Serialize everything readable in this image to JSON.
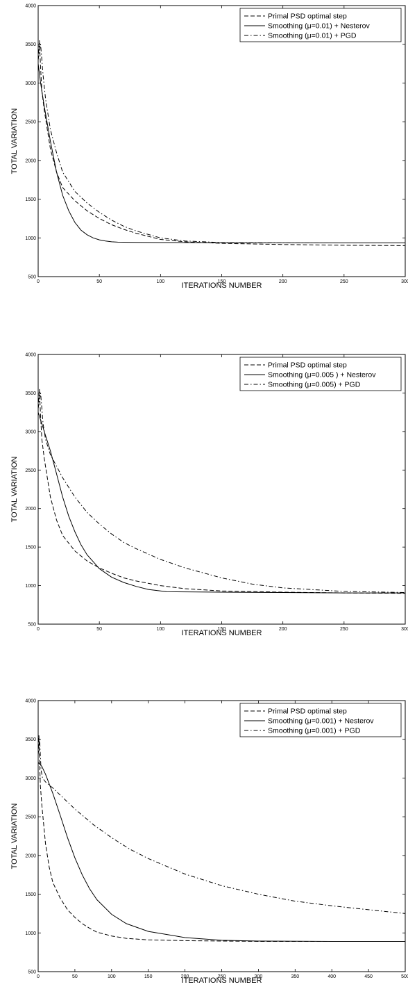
{
  "chart_data": [
    {
      "type": "line",
      "xlabel": "ITERATIONS NUMBER",
      "ylabel": "TOTAL VARIATION",
      "xlim": [
        0,
        300
      ],
      "ylim": [
        500,
        4000
      ],
      "xticks": [
        "0",
        "50",
        "100",
        "150",
        "200",
        "250",
        "300"
      ],
      "yticks": [
        "500",
        "1000",
        "1500",
        "2000",
        "2500",
        "3000",
        "3500",
        "4000"
      ],
      "legend_position": "top-right",
      "grid": false,
      "series": [
        {
          "name": "Primal PSD optimal step",
          "style": "dashed",
          "x": [
            0,
            1,
            2,
            3,
            5,
            10,
            15,
            20,
            30,
            40,
            50,
            60,
            70,
            80,
            100,
            120,
            150,
            200,
            250,
            300
          ],
          "y": [
            3300,
            3550,
            3200,
            2900,
            2650,
            2150,
            1850,
            1650,
            1480,
            1350,
            1250,
            1170,
            1110,
            1060,
            980,
            950,
            930,
            915,
            905,
            900
          ]
        },
        {
          "name": "Smoothing (μ=0.01) + Nesterov",
          "style": "solid",
          "x": [
            0,
            2,
            5,
            10,
            15,
            20,
            25,
            30,
            35,
            40,
            45,
            50,
            55,
            60,
            65,
            80,
            100,
            150,
            200,
            250,
            300
          ],
          "y": [
            3250,
            3000,
            2700,
            2250,
            1850,
            1550,
            1350,
            1200,
            1100,
            1040,
            1000,
            975,
            960,
            950,
            945,
            942,
            940,
            938,
            936,
            935,
            935
          ]
        },
        {
          "name": "Smoothing (μ=0.01) + PGD",
          "style": "dashdot",
          "x": [
            0,
            2,
            4,
            6,
            10,
            15,
            20,
            30,
            40,
            50,
            60,
            70,
            80,
            100,
            120,
            150,
            200,
            250,
            300
          ],
          "y": [
            3300,
            3500,
            3100,
            2800,
            2400,
            2100,
            1850,
            1600,
            1450,
            1330,
            1230,
            1150,
            1090,
            1000,
            960,
            940,
            935,
            935,
            935
          ]
        }
      ]
    },
    {
      "type": "line",
      "xlabel": "ITERATIONS NUMBER",
      "ylabel": "TOTAL VARIATION",
      "xlim": [
        0,
        300
      ],
      "ylim": [
        500,
        4000
      ],
      "xticks": [
        "0",
        "50",
        "100",
        "150",
        "200",
        "250",
        "300"
      ],
      "yticks": [
        "500",
        "1000",
        "1500",
        "2000",
        "2500",
        "3000",
        "3500",
        "4000"
      ],
      "legend_position": "top-right",
      "grid": false,
      "series": [
        {
          "name": "Primal PSD optimal step",
          "style": "dashed",
          "x": [
            0,
            1,
            2,
            3,
            5,
            10,
            15,
            20,
            30,
            40,
            50,
            60,
            70,
            80,
            100,
            120,
            150,
            200,
            250,
            300
          ],
          "y": [
            3300,
            3550,
            3200,
            2900,
            2650,
            2150,
            1850,
            1650,
            1450,
            1320,
            1230,
            1160,
            1100,
            1060,
            1000,
            960,
            930,
            915,
            905,
            900
          ]
        },
        {
          "name": "Smoothing (μ=0.005 ) + Nesterov",
          "style": "solid",
          "x": [
            0,
            2,
            5,
            10,
            15,
            20,
            25,
            30,
            35,
            40,
            50,
            60,
            70,
            80,
            90,
            100,
            105,
            150,
            200,
            250,
            300
          ],
          "y": [
            3250,
            3150,
            3000,
            2750,
            2450,
            2150,
            1900,
            1700,
            1530,
            1400,
            1220,
            1110,
            1040,
            990,
            950,
            930,
            920,
            915,
            910,
            905,
            905
          ]
        },
        {
          "name": "Smoothing (μ=0.005) + PGD",
          "style": "dashdot",
          "x": [
            0,
            2,
            4,
            6,
            10,
            20,
            30,
            40,
            50,
            60,
            70,
            80,
            100,
            120,
            150,
            175,
            200,
            250,
            300
          ],
          "y": [
            3300,
            3500,
            3100,
            2900,
            2700,
            2400,
            2150,
            1950,
            1800,
            1670,
            1560,
            1480,
            1340,
            1230,
            1100,
            1020,
            970,
            925,
            910
          ]
        }
      ]
    },
    {
      "type": "line",
      "xlabel": "ITERATIONS NUMBER",
      "ylabel": "TOTAL VARIATION",
      "xlim": [
        0,
        500
      ],
      "ylim": [
        500,
        4000
      ],
      "xticks": [
        "0",
        "50",
        "100",
        "150",
        "200",
        "250",
        "300",
        "350",
        "400",
        "450",
        "500"
      ],
      "yticks": [
        "500",
        "1000",
        "1500",
        "2000",
        "2500",
        "3000",
        "3500",
        "4000"
      ],
      "legend_position": "top-right",
      "grid": false,
      "series": [
        {
          "name": "Primal PSD optimal step",
          "style": "dashed",
          "x": [
            0,
            1,
            2,
            3,
            5,
            10,
            15,
            20,
            30,
            40,
            50,
            60,
            70,
            80,
            100,
            120,
            150,
            200,
            300,
            400,
            500
          ],
          "y": [
            3300,
            3550,
            3200,
            2900,
            2650,
            2150,
            1850,
            1650,
            1450,
            1300,
            1200,
            1120,
            1060,
            1010,
            960,
            930,
            910,
            900,
            890,
            890,
            890
          ]
        },
        {
          "name": "Smoothing (μ=0.001) + Nesterov",
          "style": "solid",
          "x": [
            0,
            5,
            10,
            20,
            30,
            40,
            50,
            60,
            70,
            80,
            100,
            120,
            150,
            200,
            250,
            300,
            400,
            500
          ],
          "y": [
            3200,
            3150,
            3050,
            2800,
            2520,
            2230,
            1970,
            1750,
            1570,
            1430,
            1240,
            1120,
            1020,
            940,
            905,
            895,
            890,
            890
          ]
        },
        {
          "name": "Smoothing (μ=0.001) + PGD",
          "style": "dashdot",
          "x": [
            0,
            2,
            4,
            6,
            10,
            20,
            30,
            50,
            75,
            100,
            125,
            150,
            200,
            250,
            300,
            350,
            400,
            450,
            500
          ],
          "y": [
            3300,
            3500,
            3100,
            3000,
            2950,
            2870,
            2780,
            2600,
            2400,
            2230,
            2080,
            1960,
            1760,
            1610,
            1500,
            1410,
            1350,
            1300,
            1250
          ]
        }
      ]
    }
  ]
}
